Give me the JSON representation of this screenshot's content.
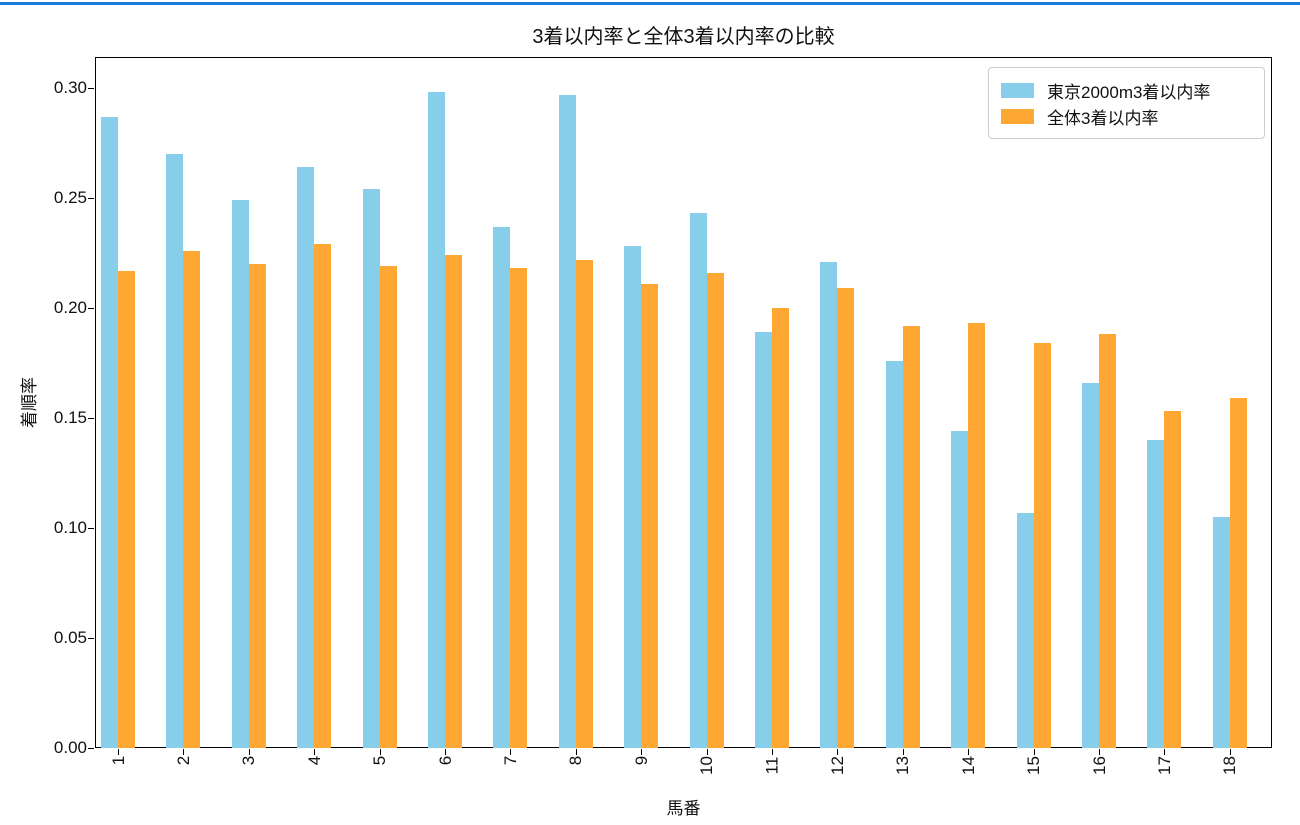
{
  "page": {
    "top_accent_color": "#1F7BD9",
    "background_color": "#ffffff"
  },
  "chart_data": {
    "type": "bar",
    "title": "3着以内率と全体3着以内率の比較",
    "xlabel": "馬番",
    "ylabel": "着順率",
    "categories": [
      "1",
      "2",
      "3",
      "4",
      "5",
      "6",
      "7",
      "8",
      "9",
      "10",
      "11",
      "12",
      "13",
      "14",
      "15",
      "16",
      "17",
      "18"
    ],
    "series": [
      {
        "name": "東京2000m3着以内率",
        "color": "#87CEEB",
        "values": [
          0.287,
          0.27,
          0.249,
          0.264,
          0.254,
          0.298,
          0.237,
          0.297,
          0.228,
          0.243,
          0.189,
          0.221,
          0.176,
          0.144,
          0.107,
          0.166,
          0.14,
          0.105
        ]
      },
      {
        "name": "全体3着以内率",
        "color": "#FFA733",
        "values": [
          0.217,
          0.226,
          0.22,
          0.229,
          0.219,
          0.224,
          0.218,
          0.222,
          0.211,
          0.216,
          0.2,
          0.209,
          0.192,
          0.193,
          0.184,
          0.188,
          0.153,
          0.159
        ]
      }
    ],
    "yticks": [
      "0.00",
      "0.05",
      "0.10",
      "0.15",
      "0.20",
      "0.25",
      "0.30"
    ],
    "ytick_values": [
      0.0,
      0.05,
      0.1,
      0.15,
      0.2,
      0.25,
      0.3
    ],
    "ylim": [
      0,
      0.314
    ],
    "grid": false,
    "legend_position": "upper right"
  }
}
